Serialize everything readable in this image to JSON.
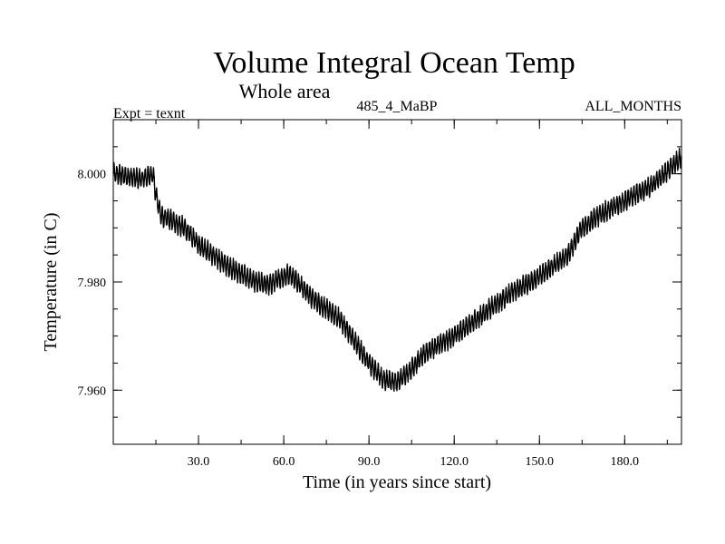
{
  "chart_data": {
    "type": "line",
    "title": "Volume Integral Ocean Temp",
    "subtitle": "Whole area",
    "experiment": "Expt = texnt",
    "run": "485_4_MaBP",
    "period": "ALL_MONTHS",
    "xlabel": "Time (in years since start)",
    "ylabel": "Temperature (in C)",
    "xlim": [
      0,
      200
    ],
    "ylim": [
      7.95,
      8.01
    ],
    "x_ticks": [
      30,
      60,
      90,
      120,
      150,
      180
    ],
    "x_tick_labels": [
      "30.0",
      "60.0",
      "90.0",
      "120.0",
      "150.0",
      "180.0"
    ],
    "x_minor_step": 15,
    "y_ticks": [
      7.96,
      7.98,
      8.0
    ],
    "y_tick_labels": [
      "7.960",
      "7.980",
      "8.000"
    ],
    "y_minor_step": 0.005,
    "grid": false,
    "samples_per_year": 12,
    "seasonal_amplitude": 0.0016,
    "series": [
      {
        "name": "volume integral ocean temperature",
        "anchor_years": [
          0,
          5,
          10,
          14,
          15,
          17,
          20,
          25,
          30,
          35,
          40,
          45,
          50,
          55,
          58,
          62,
          65,
          70,
          75,
          80,
          85,
          90,
          95,
          100,
          105,
          110,
          120,
          130,
          140,
          150,
          160,
          165,
          170,
          180,
          190,
          200
        ],
        "anchor_values": [
          8.0,
          7.9995,
          7.999,
          8.0,
          7.996,
          7.992,
          7.9915,
          7.99,
          7.987,
          7.985,
          7.983,
          7.9815,
          7.98,
          7.9795,
          7.9805,
          7.9815,
          7.98,
          7.977,
          7.975,
          7.973,
          7.969,
          7.965,
          7.962,
          7.9615,
          7.964,
          7.967,
          7.97,
          7.974,
          7.978,
          7.981,
          7.985,
          7.99,
          7.992,
          7.995,
          7.998,
          8.003
        ]
      }
    ]
  }
}
